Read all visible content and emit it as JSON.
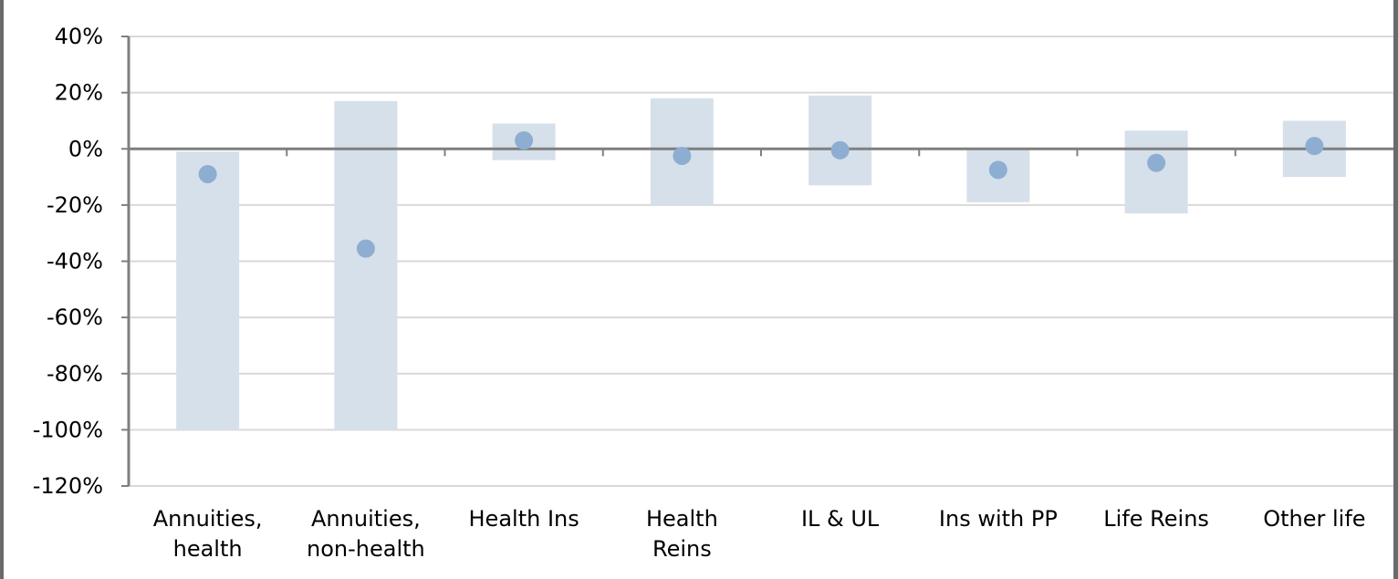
{
  "chart_data": {
    "type": "scatter",
    "title": "",
    "xlabel": "",
    "ylabel": "",
    "ylim": [
      -120,
      40
    ],
    "yticks": [
      40,
      20,
      0,
      -20,
      -40,
      -60,
      -80,
      -100,
      -120
    ],
    "ytick_labels": [
      "40%",
      "20%",
      "0%",
      "-20%",
      "-40%",
      "-60%",
      "-80%",
      "-100%",
      "-120%"
    ],
    "grid": true,
    "legend": "none",
    "categories": [
      [
        "Annuities,",
        "health"
      ],
      [
        "Annuities,",
        "non-health"
      ],
      [
        "Health Ins"
      ],
      [
        "Health",
        "Reins"
      ],
      [
        "IL & UL"
      ],
      [
        "Ins with PP"
      ],
      [
        "Life Reins"
      ],
      [
        "Other life"
      ]
    ],
    "ranges": [
      [
        -100,
        -1
      ],
      [
        -100,
        17
      ],
      [
        -4,
        9
      ],
      [
        -20,
        18
      ],
      [
        -13,
        19
      ],
      [
        -19,
        0
      ],
      [
        -23,
        6.5
      ],
      [
        -10,
        10
      ]
    ],
    "values": [
      -9,
      -35.5,
      3,
      -2.5,
      -0.5,
      -7.5,
      -5,
      1
    ],
    "colors": {
      "range": "#d6e0ea",
      "point": "#8eaed1",
      "grid": "#d9d9d9",
      "axis": "#7f7f7f"
    }
  }
}
